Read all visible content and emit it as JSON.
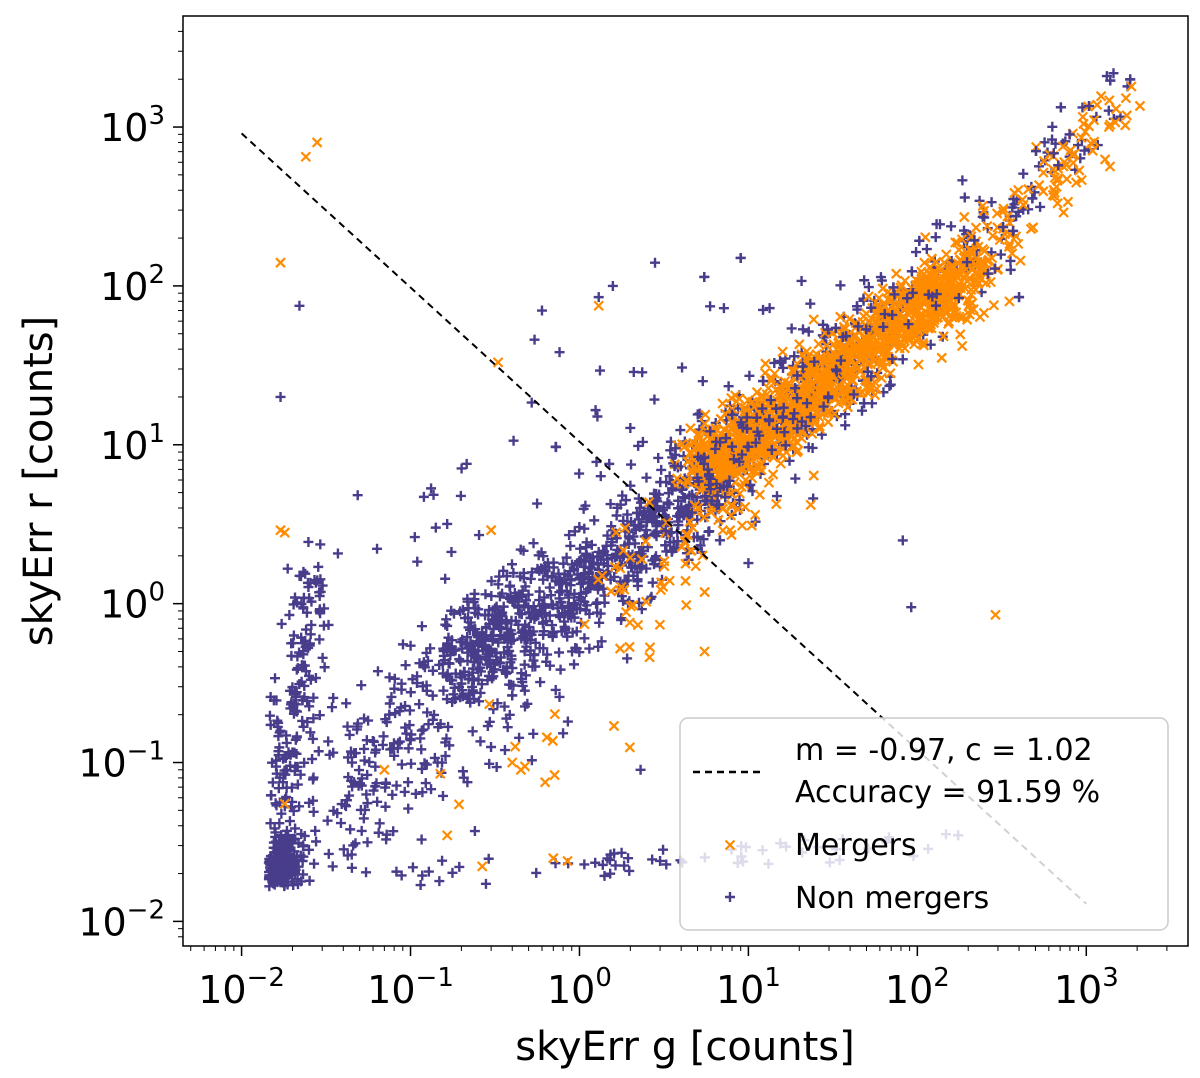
{
  "chart_data": {
    "type": "scatter",
    "xscale": "log",
    "yscale": "log",
    "xlabel": "skyErr g [counts]",
    "ylabel": "skyErr r [counts]",
    "xlim": [
      0.0045,
      4000
    ],
    "ylim": [
      0.007,
      5000
    ],
    "xticks": [
      {
        "base": "10",
        "exp": "−2",
        "value": 0.01
      },
      {
        "base": "10",
        "exp": "−1",
        "value": 0.1
      },
      {
        "base": "10",
        "exp": "0",
        "value": 1
      },
      {
        "base": "10",
        "exp": "1",
        "value": 10
      },
      {
        "base": "10",
        "exp": "2",
        "value": 100
      },
      {
        "base": "10",
        "exp": "3",
        "value": 1000
      }
    ],
    "yticks": [
      {
        "base": "10",
        "exp": "−2",
        "value": 0.01
      },
      {
        "base": "10",
        "exp": "−1",
        "value": 0.1
      },
      {
        "base": "10",
        "exp": "0",
        "value": 1
      },
      {
        "base": "10",
        "exp": "1",
        "value": 10
      },
      {
        "base": "10",
        "exp": "2",
        "value": 100
      },
      {
        "base": "10",
        "exp": "3",
        "value": 1000
      }
    ],
    "boundary_line": {
      "label_line1": "m = -0.97, c = 1.02",
      "label_line2": "Accuracy = 91.59 %",
      "slope": -0.97,
      "intercept": 1.02,
      "x_range": [
        0.01,
        1000
      ],
      "color": "#000000"
    },
    "series": [
      {
        "name": "Non mergers",
        "marker": "+",
        "color": "#483d8b",
        "generator": {
          "seed": 7,
          "clusters": [
            {
              "n": 260,
              "lx": [
                -1.8,
                -1.75
              ],
              "ly": [
                -1.75,
                -1.55
              ],
              "sx": 0.06,
              "sy": 0.08
            },
            {
              "n": 190,
              "lx": [
                -1.8,
                -1.6
              ],
              "ly": [
                -1.7,
                0.2
              ],
              "sx": 0.07,
              "sy": 0.12
            },
            {
              "n": 380,
              "lx": [
                -1.6,
                0.0
              ],
              "ly": [
                -1.4,
                0.1
              ],
              "sx": 0.22,
              "sy": 0.22
            },
            {
              "n": 650,
              "lx": [
                -0.8,
                0.9
              ],
              "ly": [
                -0.4,
                0.8
              ],
              "sx": 0.12,
              "sy": 0.14
            },
            {
              "n": 220,
              "lx": [
                0.5,
                1.6
              ],
              "ly": [
                0.6,
                1.6
              ],
              "sx": 0.12,
              "sy": 0.14
            },
            {
              "n": 260,
              "lx": [
                1.0,
                2.4
              ],
              "ly": [
                1.0,
                2.3
              ],
              "sx": 0.14,
              "sy": 0.16
            },
            {
              "n": 55,
              "lx": [
                2.4,
                3.3
              ],
              "ly": [
                2.3,
                3.3
              ],
              "sx": 0.09,
              "sy": 0.1
            },
            {
              "n": 60,
              "lx": [
                -1.0,
                2.0
              ],
              "ly": [
                -1.7,
                -1.5
              ],
              "sx": 0.15,
              "sy": 0.05
            },
            {
              "n": 45,
              "lx": [
                -1.2,
                1.2
              ],
              "ly": [
                0.3,
                2.0
              ],
              "sx": 0.3,
              "sy": 0.3
            }
          ],
          "points": [
            [
              0.022,
              75
            ],
            [
              0.017,
              20
            ],
            [
              1.3,
              85
            ],
            [
              0.6,
              70
            ],
            [
              2.8,
              140
            ],
            [
              9,
              150
            ],
            [
              54,
              22
            ],
            [
              82,
              2.5
            ],
            [
              92,
              0.95
            ],
            [
              10,
              1.8
            ],
            [
              400,
              85
            ],
            [
              0.12,
              4.7
            ],
            [
              2.3,
              0.09
            ],
            [
              3,
              0.024
            ]
          ]
        }
      },
      {
        "name": "Mergers",
        "marker": "x",
        "color": "#ff8c00",
        "generator": {
          "seed": 11,
          "clusters": [
            {
              "n": 1150,
              "lx": [
                0.7,
                2.3
              ],
              "ly": [
                0.8,
                2.1
              ],
              "sx": 0.1,
              "sy": 0.12
            },
            {
              "n": 120,
              "lx": [
                2.1,
                3.25
              ],
              "ly": [
                1.9,
                3.15
              ],
              "sx": 0.09,
              "sy": 0.1
            },
            {
              "n": 90,
              "lx": [
                0.2,
                1.2
              ],
              "ly": [
                0.0,
                0.9
              ],
              "sx": 0.14,
              "sy": 0.15
            },
            {
              "n": 14,
              "lx": [
                -1.3,
                0.8
              ],
              "ly": [
                -1.6,
                -0.2
              ],
              "sx": 0.25,
              "sy": 0.25
            }
          ],
          "points": [
            [
              0.024,
              650
            ],
            [
              0.028,
              800
            ],
            [
              0.017,
              140
            ],
            [
              0.017,
              2.9
            ],
            [
              0.018,
              2.8
            ],
            [
              0.018,
              0.055
            ],
            [
              1.3,
              75
            ],
            [
              0.33,
              33
            ],
            [
              290,
              0.85
            ],
            [
              1850,
              1800
            ],
            [
              1500,
              1300
            ],
            [
              5.5,
              0.5
            ],
            [
              1.6,
              0.17
            ],
            [
              0.7,
              0.025
            ],
            [
              0.85,
              0.024
            ],
            [
              0.4,
              0.1
            ],
            [
              0.45,
              0.09
            ],
            [
              0.15,
              0.085
            ],
            [
              0.07,
              0.09
            ],
            [
              0.3,
              2.9
            ],
            [
              2.6,
              0.46
            ]
          ]
        }
      }
    ],
    "legend": {
      "position": "bottom-right",
      "entries": [
        {
          "label_line1": "m = -0.97, c = 1.02",
          "label_line2": "Accuracy = 91.59 %"
        },
        {
          "label": "Mergers"
        },
        {
          "label": "Non mergers"
        }
      ]
    }
  }
}
